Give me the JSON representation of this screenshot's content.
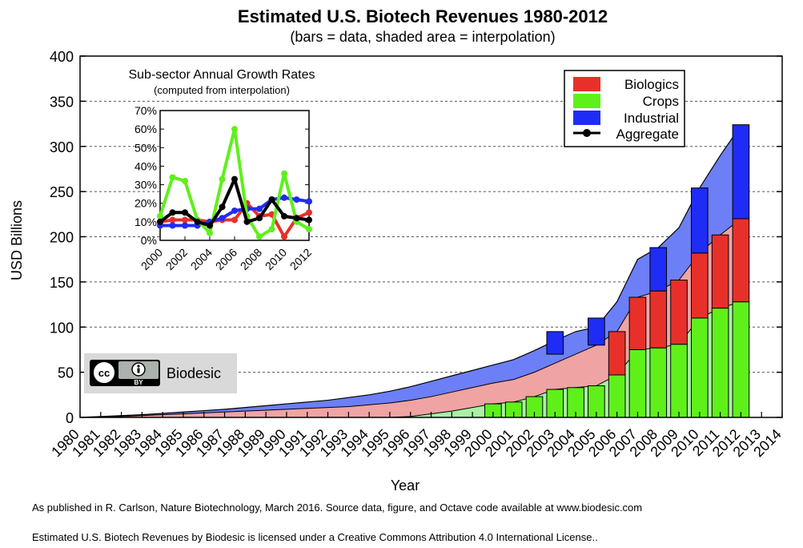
{
  "chart_data": {
    "type": "bar",
    "title": "Estimated U.S. Biotech Revenues 1980-2012",
    "subtitle": "(bars = data, shaded area = interpolation)",
    "xlabel": "Year",
    "ylabel": "USD Billions",
    "xlim": [
      1980,
      2014
    ],
    "ylim": [
      0,
      400
    ],
    "yticks": [
      0,
      50,
      100,
      150,
      200,
      250,
      300,
      350,
      400
    ],
    "xticks": [
      "1980",
      "1981",
      "1982",
      "1983",
      "1984",
      "1985",
      "1986",
      "1987",
      "1988",
      "1989",
      "1990",
      "1991",
      "1992",
      "1993",
      "1994",
      "1995",
      "1996",
      "1997",
      "1998",
      "1999",
      "2000",
      "2001",
      "2002",
      "2003",
      "2004",
      "2005",
      "2006",
      "2007",
      "2008",
      "2009",
      "2010",
      "2011",
      "2012",
      "2013",
      "2014"
    ],
    "grid": "horizontal dashed",
    "legend": {
      "placement": "top-right",
      "entries": [
        {
          "name": "Biologics",
          "color": "#e8302a"
        },
        {
          "name": "Crops",
          "color": "#5ff01a"
        },
        {
          "name": "Industrial",
          "color": "#1f2cf5"
        },
        {
          "name": "Aggregate",
          "color": "#000000"
        }
      ]
    },
    "colors": {
      "biologics": "#e8302a",
      "crops": "#5ff01a",
      "industrial": "#1f2cf5",
      "biologics_area": "#f0a3a3",
      "crops_area": "#a8f0a6",
      "industrial_area": "#6c7ff7"
    },
    "bars": [
      {
        "year": 2000,
        "crops": 15,
        "biologics": 0,
        "industrial": 0
      },
      {
        "year": 2001,
        "crops": 17,
        "biologics": 0,
        "industrial": 0
      },
      {
        "year": 2002,
        "crops": 23,
        "biologics": 0,
        "industrial": 0
      },
      {
        "year": 2003,
        "crops": 0,
        "biologics": 0,
        "industrial": 25,
        "industrial_base": 70
      },
      {
        "year": 2003,
        "crops": 31,
        "biologics": 0,
        "industrial": 0
      },
      {
        "year": 2004,
        "crops": 33,
        "biologics": 0,
        "industrial": 0
      },
      {
        "year": 2005,
        "crops": 35,
        "biologics": 0,
        "industrial": 30,
        "industrial_base": 80
      },
      {
        "year": 2006,
        "crops": 47,
        "biologics": 48,
        "industrial": 0
      },
      {
        "year": 2007,
        "crops": 75,
        "biologics": 58,
        "industrial": 0
      },
      {
        "year": 2008,
        "crops": 77,
        "biologics": 63,
        "industrial": 48
      },
      {
        "year": 2009,
        "crops": 81,
        "biologics": 71,
        "industrial": 0
      },
      {
        "year": 2010,
        "crops": 110,
        "biologics": 72,
        "industrial": 72
      },
      {
        "year": 2011,
        "crops": 121,
        "biologics": 81,
        "industrial": 0
      },
      {
        "year": 2012,
        "crops": 128,
        "biologics": 92,
        "industrial": 104
      }
    ],
    "area": {
      "years": [
        1980,
        1981,
        1982,
        1983,
        1984,
        1985,
        1986,
        1987,
        1988,
        1989,
        1990,
        1991,
        1992,
        1993,
        1994,
        1995,
        1996,
        1997,
        1998,
        1999,
        2000,
        2001,
        2002,
        2003,
        2004,
        2005,
        2006,
        2007,
        2008,
        2009,
        2010,
        2011,
        2012
      ],
      "crops_top": [
        0,
        0,
        0,
        0,
        0,
        0,
        0,
        0,
        0,
        0,
        0,
        0,
        0,
        0,
        0,
        0,
        1,
        4,
        7,
        11,
        15,
        17,
        23,
        31,
        33,
        35,
        47,
        75,
        77,
        81,
        110,
        121,
        128
      ],
      "biologics_top": [
        0,
        0.5,
        1,
        2,
        3,
        4,
        5,
        6,
        7,
        8,
        9,
        10,
        11,
        12,
        14,
        16,
        19,
        23,
        28,
        33,
        38,
        42,
        50,
        60,
        70,
        80,
        95,
        133,
        140,
        152,
        182,
        202,
        220
      ],
      "total_top": [
        0,
        1,
        2,
        3,
        4.5,
        6,
        7.5,
        9,
        11,
        13,
        15,
        17,
        19,
        22,
        25,
        29,
        34,
        40,
        46,
        52,
        58,
        64,
        74,
        85,
        95,
        100,
        128,
        175,
        188,
        210,
        254,
        290,
        323
      ]
    },
    "inset": {
      "title": "Sub-sector Annual Growth Rates",
      "subtitle": "(computed from interpolation)",
      "type": "line",
      "x": [
        2000,
        2001,
        2002,
        2003,
        2004,
        2005,
        2006,
        2007,
        2008,
        2009,
        2010,
        2011,
        2012
      ],
      "xticks": [
        "2000",
        "2002",
        "2004",
        "2006",
        "2008",
        "2010",
        "2012"
      ],
      "yticks": [
        "0%",
        "10%",
        "20%",
        "30%",
        "40%",
        "50%",
        "60%",
        "70%"
      ],
      "ylim": [
        0,
        70
      ],
      "series": [
        {
          "name": "Biologics",
          "color": "#e8302a",
          "values": [
            10,
            11,
            11,
            11,
            10,
            11,
            11,
            20,
            13,
            14,
            2,
            12,
            15
          ]
        },
        {
          "name": "Industrial",
          "color": "#1f2cf5",
          "values": [
            8,
            8,
            8,
            8,
            10,
            12,
            16,
            17,
            17,
            22,
            23,
            22,
            21
          ]
        },
        {
          "name": "Crops",
          "color": "#5ff01a",
          "values": [
            13,
            34,
            32,
            11,
            4,
            33,
            60,
            13,
            2,
            6,
            36,
            10,
            6
          ]
        },
        {
          "name": "Aggregate",
          "color": "#000000",
          "values": [
            10,
            15,
            15,
            10,
            8,
            18,
            33,
            10,
            12,
            22,
            13,
            12,
            11
          ]
        }
      ]
    }
  },
  "watermark": {
    "badge_text": "Biodesic",
    "cc_glyph": "cc",
    "by_glyph": "BY"
  },
  "footer": {
    "line1": "As published in R. Carlson, Nature Biotechnology, March 2016. Source data, figure, and Octave code available at www.biodesic.com",
    "line2": "Estimated U.S. Biotech Revenues by Biodesic is licensed under a Creative Commons Attribution 4.0 International License.."
  }
}
